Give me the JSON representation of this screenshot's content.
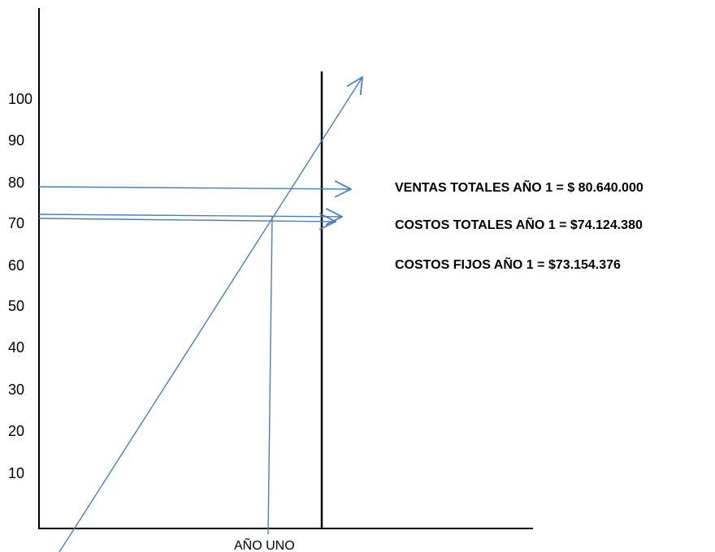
{
  "colors": {
    "axis": "#000000",
    "arrows": "#4a7ebb"
  },
  "y_axis": {
    "ticks": [
      "10",
      "20",
      "30",
      "40",
      "50",
      "60",
      "70",
      "80",
      "90",
      "100"
    ]
  },
  "x_axis": {
    "label": "AÑO UNO"
  },
  "notes": [
    "VENTAS TOTALES AÑO 1 = $ 80.640.000",
    "COSTOS TOTALES AÑO 1 = $74.124.380",
    "COSTOS FIJOS AÑO 1 = $73.154.376"
  ]
}
